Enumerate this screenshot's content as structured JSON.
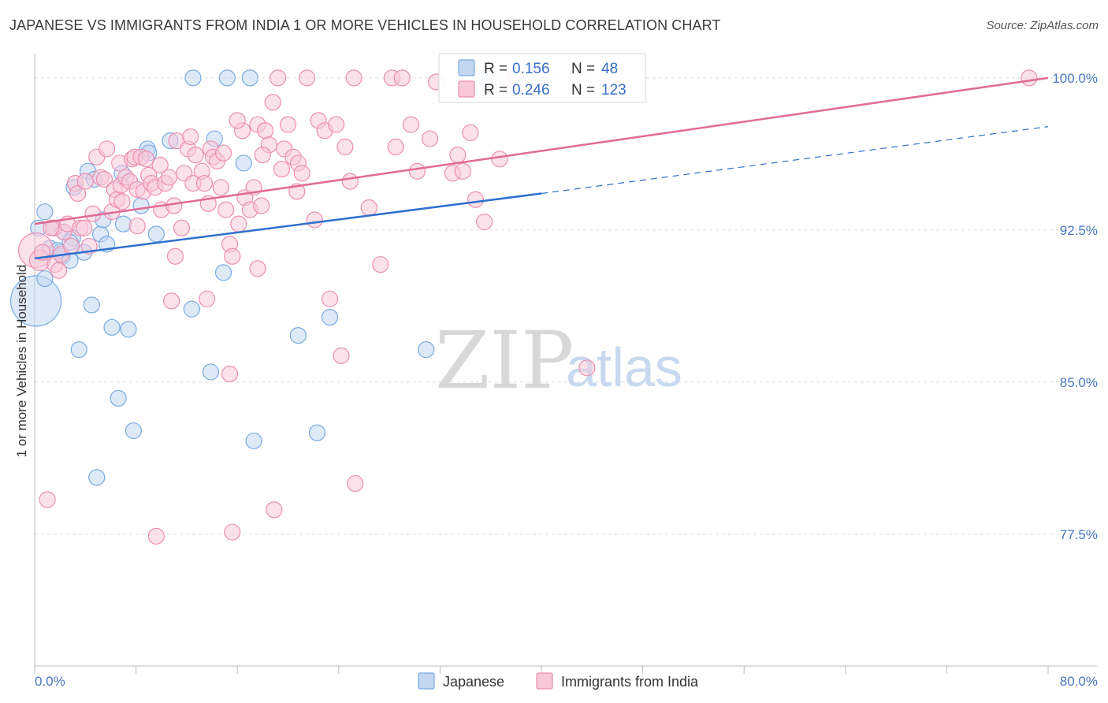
{
  "title": "JAPANESE VS IMMIGRANTS FROM INDIA 1 OR MORE VEHICLES IN HOUSEHOLD CORRELATION CHART",
  "source": "Source: ZipAtlas.com",
  "watermark": {
    "zip": "ZIP",
    "atlas": "atlas"
  },
  "chart_data": {
    "type": "scatter",
    "title": "JAPANESE VS IMMIGRANTS FROM INDIA 1 OR MORE VEHICLES IN HOUSEHOLD CORRELATION CHART",
    "xlabel": "",
    "ylabel": "1 or more Vehicles in Household",
    "xlim": [
      0,
      80
    ],
    "ylim": [
      71,
      101.2
    ],
    "x_tick_labels": [
      "0.0%",
      "80.0%"
    ],
    "y_ticks": [
      {
        "value": 100.0,
        "label": "100.0%"
      },
      {
        "value": 92.5,
        "label": "92.5%"
      },
      {
        "value": 85.0,
        "label": "85.0%"
      },
      {
        "value": 77.5,
        "label": "77.5%"
      }
    ],
    "legend": {
      "placement": "top-center",
      "rows": [
        {
          "r_label": "R =",
          "r_value": "0.156",
          "n_label": "N =",
          "n_value": "48"
        },
        {
          "r_label": "R =",
          "r_value": "0.246",
          "n_label": "N =",
          "n_value": "123"
        }
      ]
    },
    "series": [
      {
        "name": "Japanese",
        "color": "#7aaae3",
        "fill": "#c3d7f2",
        "line_color": "#2f6fce",
        "trend": {
          "x_start": 0,
          "y_start": 91.1,
          "x_solid_end": 40,
          "y_solid_end": 94.3,
          "x_end": 80,
          "y_end": 97.6
        },
        "points": [
          [
            0.1,
            89.0,
            3.2
          ],
          [
            0.3,
            92.6,
            1
          ],
          [
            0.8,
            93.4,
            1
          ],
          [
            0.8,
            90.1,
            1
          ],
          [
            1.2,
            91.6,
            1
          ],
          [
            1.5,
            92.6,
            1
          ],
          [
            2.0,
            91.4,
            1
          ],
          [
            2.2,
            91.2,
            1
          ],
          [
            2.3,
            92.4,
            1
          ],
          [
            2.8,
            91.0,
            1
          ],
          [
            3.0,
            92.1,
            1
          ],
          [
            3.1,
            94.6,
            1
          ],
          [
            3.5,
            86.6,
            1
          ],
          [
            3.9,
            91.4,
            1
          ],
          [
            4.2,
            95.4,
            1
          ],
          [
            4.5,
            88.8,
            1
          ],
          [
            4.7,
            95.0,
            1
          ],
          [
            5.2,
            92.3,
            1
          ],
          [
            5.4,
            93.0,
            1
          ],
          [
            5.7,
            91.8,
            1
          ],
          [
            6.1,
            87.7,
            1
          ],
          [
            6.6,
            84.2,
            1
          ],
          [
            6.9,
            95.3,
            1
          ],
          [
            7.0,
            92.8,
            1
          ],
          [
            7.4,
            87.6,
            1
          ],
          [
            7.8,
            82.6,
            1
          ],
          [
            8.4,
            93.7,
            1
          ],
          [
            8.9,
            96.5,
            1
          ],
          [
            9.0,
            96.3,
            1
          ],
          [
            9.6,
            92.3,
            1
          ],
          [
            10.7,
            96.9,
            1
          ],
          [
            12.5,
            100.0,
            1
          ],
          [
            12.4,
            88.6,
            1
          ],
          [
            13.9,
            85.5,
            1
          ],
          [
            14.2,
            97.0,
            1
          ],
          [
            14.9,
            90.4,
            1
          ],
          [
            15.2,
            100.0,
            1
          ],
          [
            16.5,
            95.8,
            1
          ],
          [
            17.0,
            100.0,
            1
          ],
          [
            17.3,
            82.1,
            1
          ],
          [
            20.8,
            87.3,
            1
          ],
          [
            22.3,
            82.5,
            1
          ],
          [
            23.3,
            88.2,
            1
          ],
          [
            30.9,
            86.6,
            1
          ],
          [
            35.2,
            100.0,
            1
          ],
          [
            4.9,
            80.3,
            1
          ],
          [
            2.8,
            91.9,
            1
          ],
          [
            1.8,
            91.5,
            1
          ]
        ]
      },
      {
        "name": "Immigrants from India",
        "color": "#ec8fb0",
        "fill": "#f8c8d8",
        "line_color": "#e06b95",
        "trend": {
          "x_start": 0,
          "y_start": 92.8,
          "x_end": 80,
          "y_end": 100.0
        },
        "points": [
          [
            0.1,
            91.5,
            2.2
          ],
          [
            0.4,
            91.0,
            1.3
          ],
          [
            0.6,
            91.4,
            1
          ],
          [
            1.0,
            79.2,
            1
          ],
          [
            1.5,
            92.6,
            1
          ],
          [
            1.6,
            90.8,
            1
          ],
          [
            1.9,
            90.5,
            1
          ],
          [
            2.1,
            91.3,
            1
          ],
          [
            2.3,
            92.4,
            1
          ],
          [
            2.6,
            92.8,
            1
          ],
          [
            2.9,
            91.7,
            1
          ],
          [
            3.2,
            94.8,
            1
          ],
          [
            3.4,
            94.3,
            1
          ],
          [
            3.6,
            92.6,
            1
          ],
          [
            3.9,
            92.6,
            1
          ],
          [
            4.3,
            91.7,
            1
          ],
          [
            4.6,
            93.3,
            1
          ],
          [
            4.9,
            96.1,
            1
          ],
          [
            5.2,
            95.1,
            1
          ],
          [
            5.5,
            95.0,
            1
          ],
          [
            5.7,
            96.5,
            1
          ],
          [
            6.1,
            93.4,
            1
          ],
          [
            6.3,
            94.5,
            1
          ],
          [
            6.5,
            94.0,
            1
          ],
          [
            6.7,
            95.8,
            1
          ],
          [
            6.8,
            94.7,
            1
          ],
          [
            7.2,
            95.1,
            1
          ],
          [
            7.5,
            94.9,
            1
          ],
          [
            7.7,
            96.0,
            1
          ],
          [
            7.9,
            96.1,
            1
          ],
          [
            8.1,
            94.5,
            1
          ],
          [
            8.4,
            96.1,
            1
          ],
          [
            8.6,
            94.4,
            1
          ],
          [
            8.8,
            96.0,
            1
          ],
          [
            9.0,
            95.2,
            1
          ],
          [
            9.2,
            94.8,
            1
          ],
          [
            9.5,
            94.6,
            1
          ],
          [
            9.9,
            95.7,
            1
          ],
          [
            10.0,
            93.5,
            1
          ],
          [
            10.3,
            94.8,
            1
          ],
          [
            10.6,
            95.1,
            1
          ],
          [
            11.0,
            93.7,
            1
          ],
          [
            11.2,
            96.9,
            1
          ],
          [
            11.6,
            92.6,
            1
          ],
          [
            11.8,
            95.3,
            1
          ],
          [
            12.1,
            96.5,
            1
          ],
          [
            12.3,
            97.1,
            1
          ],
          [
            12.5,
            94.8,
            1
          ],
          [
            12.7,
            96.2,
            1
          ],
          [
            13.2,
            95.4,
            1
          ],
          [
            13.4,
            94.8,
            1
          ],
          [
            13.7,
            93.8,
            1
          ],
          [
            13.9,
            96.5,
            1
          ],
          [
            14.1,
            96.1,
            1
          ],
          [
            14.4,
            95.9,
            1
          ],
          [
            14.9,
            96.3,
            1
          ],
          [
            15.1,
            93.5,
            1
          ],
          [
            15.4,
            91.8,
            1
          ],
          [
            15.6,
            91.2,
            1
          ],
          [
            16.1,
            92.8,
            1
          ],
          [
            16.4,
            97.4,
            1
          ],
          [
            16.6,
            94.1,
            1
          ],
          [
            17.0,
            93.5,
            1
          ],
          [
            17.3,
            94.6,
            1
          ],
          [
            17.6,
            97.7,
            1
          ],
          [
            17.9,
            93.7,
            1
          ],
          [
            18.2,
            97.4,
            1
          ],
          [
            18.5,
            96.7,
            1
          ],
          [
            18.8,
            98.8,
            1
          ],
          [
            19.2,
            100.0,
            1
          ],
          [
            19.5,
            95.5,
            1
          ],
          [
            19.7,
            96.5,
            1
          ],
          [
            20.0,
            97.7,
            1
          ],
          [
            20.4,
            96.1,
            1
          ],
          [
            20.8,
            95.8,
            1
          ],
          [
            21.1,
            95.3,
            1
          ],
          [
            21.5,
            100.0,
            1
          ],
          [
            22.1,
            93.0,
            1
          ],
          [
            22.4,
            97.9,
            1
          ],
          [
            22.9,
            97.4,
            1
          ],
          [
            23.3,
            89.1,
            1
          ],
          [
            23.8,
            97.7,
            1
          ],
          [
            24.2,
            86.3,
            1
          ],
          [
            24.5,
            96.6,
            1
          ],
          [
            24.9,
            94.9,
            1
          ],
          [
            25.2,
            100.0,
            1
          ],
          [
            25.3,
            80.0,
            1
          ],
          [
            26.4,
            93.6,
            1
          ],
          [
            27.3,
            90.8,
            1
          ],
          [
            28.2,
            100.0,
            1
          ],
          [
            28.5,
            96.6,
            1
          ],
          [
            29.0,
            100.0,
            1
          ],
          [
            29.7,
            97.7,
            1
          ],
          [
            30.2,
            95.4,
            1
          ],
          [
            31.2,
            97.0,
            1
          ],
          [
            31.7,
            99.8,
            1
          ],
          [
            33.0,
            95.3,
            1
          ],
          [
            33.4,
            96.2,
            1
          ],
          [
            33.8,
            95.4,
            1
          ],
          [
            34.4,
            97.3,
            1
          ],
          [
            34.8,
            94.0,
            1
          ],
          [
            35.5,
            92.9,
            1
          ],
          [
            36.7,
            96.0,
            1
          ],
          [
            37.3,
            100.0,
            1
          ],
          [
            38.0,
            100.0,
            1
          ],
          [
            43.6,
            85.7,
            1
          ],
          [
            78.5,
            100.0,
            1
          ],
          [
            13.6,
            89.1,
            1
          ],
          [
            15.4,
            85.4,
            1
          ],
          [
            17.6,
            90.6,
            1
          ],
          [
            18.9,
            78.7,
            1
          ],
          [
            9.6,
            77.4,
            1
          ],
          [
            15.6,
            77.6,
            1
          ],
          [
            11.1,
            91.2,
            1
          ],
          [
            10.8,
            89.0,
            1
          ],
          [
            1.3,
            92.6,
            1
          ],
          [
            4.0,
            94.9,
            1
          ],
          [
            6.9,
            93.9,
            1
          ],
          [
            8.1,
            92.7,
            1
          ],
          [
            14.7,
            94.6,
            1
          ],
          [
            16.0,
            97.9,
            1
          ],
          [
            18.0,
            96.2,
            1
          ],
          [
            20.7,
            94.4,
            1
          ]
        ]
      }
    ],
    "bottom_legend": [
      "Japanese",
      "Immigrants from India"
    ]
  }
}
